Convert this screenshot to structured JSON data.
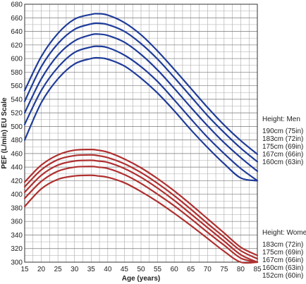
{
  "chart_data": {
    "type": "line",
    "title": "",
    "xlabel": "Age (years)",
    "ylabel": "PEF (L/min) EU Scale",
    "xlim": [
      15,
      85
    ],
    "ylim": [
      300,
      680
    ],
    "x_ticks": [
      15,
      20,
      25,
      30,
      35,
      40,
      45,
      50,
      55,
      60,
      65,
      70,
      75,
      80,
      85
    ],
    "y_ticks": [
      300,
      320,
      340,
      360,
      380,
      400,
      420,
      440,
      460,
      480,
      500,
      520,
      540,
      560,
      580,
      600,
      620,
      640,
      660,
      680
    ],
    "grid": true,
    "x_sample": [
      15,
      20,
      25,
      30,
      35,
      37,
      40,
      45,
      50,
      55,
      60,
      65,
      70,
      75,
      80,
      85
    ],
    "groups": [
      {
        "heading": "Height: Men",
        "color": "#1f3c9a",
        "series": [
          {
            "name": "190cm (75in)",
            "values": [
              553,
              603,
              637,
              658,
              665,
              666,
              664,
              653,
              635,
              611,
              584,
              556,
              528,
              502,
              479,
              459
            ]
          },
          {
            "name": "183cm (72in)",
            "values": [
              537,
              588,
              622,
              643,
              651,
              652,
              650,
              640,
              622,
              599,
              572,
              544,
              516,
              491,
              468,
              448
            ]
          },
          {
            "name": "175cm (69in)",
            "values": [
              520,
              570,
              605,
              626,
              635,
              636,
              634,
              624,
              606,
              583,
              556,
              528,
              501,
              476,
              454,
              434
            ]
          },
          {
            "name": "167cm (66in)",
            "values": [
              503,
              553,
              587,
              609,
              617,
              618,
              616,
              605,
              588,
              566,
              539,
              511,
              484,
              460,
              438,
              420
            ]
          },
          {
            "name": "160cm (63in)",
            "values": [
              480,
              535,
              570,
              592,
              600,
              601,
              599,
              589,
              571,
              549,
              523,
              495,
              469,
              445,
              424,
              420
            ]
          }
        ]
      },
      {
        "heading": "Height: Women",
        "color": "#b03030",
        "series": [
          {
            "name": "183cm (72in)",
            "values": [
              418,
              443,
              458,
              465,
              466,
              465,
              462,
              452,
              439,
              423,
              405,
              385,
              364,
              343,
              322,
              310
            ]
          },
          {
            "name": "175cm (69in)",
            "values": [
              411,
              436,
              451,
              457,
              458,
              457,
              454,
              445,
              432,
              416,
              398,
              378,
              357,
              337,
              317,
              305
            ]
          },
          {
            "name": "167cm (66in)",
            "values": [
              403,
              428,
              443,
              449,
              450,
              449,
              447,
              438,
              425,
              409,
              391,
              371,
              351,
              331,
              311,
              300
            ]
          },
          {
            "name": "160cm (63in)",
            "values": [
              394,
              419,
              434,
              440,
              441,
              440,
              438,
              429,
              416,
              400,
              383,
              364,
              344,
              325,
              306,
              300
            ]
          },
          {
            "name": "152cm (60in)",
            "values": [
              382,
              408,
              422,
              427,
              428,
              427,
              425,
              417,
              404,
              389,
              372,
              354,
              335,
              316,
              300,
              300
            ]
          }
        ]
      }
    ]
  }
}
